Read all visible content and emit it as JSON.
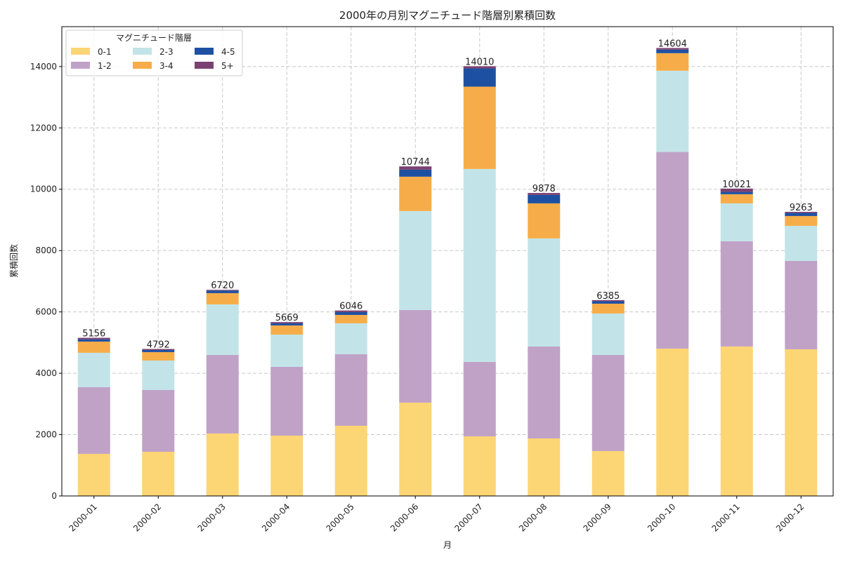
{
  "chart_data": {
    "type": "bar",
    "stacked": true,
    "title": "2000年の月別マグニチュード階層別累積回数",
    "xlabel": "月",
    "ylabel": "累積回数",
    "ylim": [
      0,
      15300
    ],
    "yticks": [
      0,
      2000,
      4000,
      6000,
      8000,
      10000,
      12000,
      14000
    ],
    "grid": true,
    "legend": {
      "title": "マグニチュード階層",
      "position": "top-left"
    },
    "categories": [
      "2000-01",
      "2000-02",
      "2000-03",
      "2000-04",
      "2000-05",
      "2000-06",
      "2000-07",
      "2000-08",
      "2000-09",
      "2000-10",
      "2000-11",
      "2000-12"
    ],
    "series": [
      {
        "name": "0-1",
        "color": "#fcd575",
        "values": [
          1373,
          1441,
          2036,
          1967,
          2288,
          3043,
          1944,
          1876,
          1464,
          4804,
          4873,
          4781
        ]
      },
      {
        "name": "1-2",
        "color": "#c0a2c7",
        "values": [
          2173,
          2013,
          2562,
          2242,
          2333,
          3019,
          2425,
          2997,
          3134,
          6412,
          3431,
          2882
        ]
      },
      {
        "name": "2-3",
        "color": "#c2e4e8",
        "values": [
          1121,
          961,
          1647,
          1052,
          1007,
          3226,
          6291,
          3523,
          1350,
          2647,
          1235,
          1144
        ]
      },
      {
        "name": "3-4",
        "color": "#f6ad49",
        "values": [
          366,
          275,
          366,
          298,
          274,
          1121,
          2684,
          1143,
          320,
          572,
          298,
          320
        ]
      },
      {
        "name": "4-5",
        "color": "#1e50a2",
        "values": [
          75,
          68,
          85,
          69,
          92,
          228,
          594,
          275,
          80,
          114,
          75,
          99
        ]
      },
      {
        "name": "5+",
        "color": "#7a4171",
        "values": [
          48,
          34,
          24,
          41,
          52,
          107,
          72,
          64,
          37,
          55,
          109,
          37
        ]
      }
    ],
    "totals": [
      "5156",
      "4792",
      "6720",
      "5669",
      "6046",
      "10744",
      "14010",
      "9878",
      "6385",
      "14604",
      "10021",
      "9263"
    ]
  }
}
